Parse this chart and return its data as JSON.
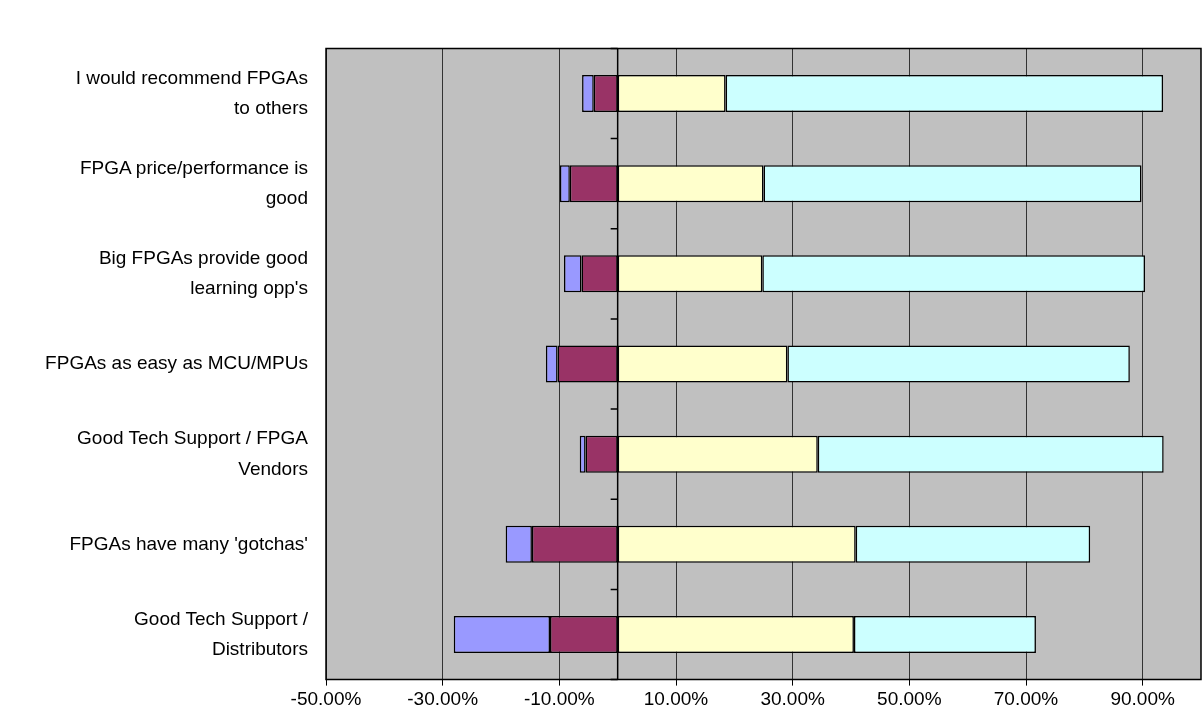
{
  "chart_data": {
    "type": "bar",
    "orientation": "horizontal",
    "stacked": true,
    "grid": "x",
    "legend": false,
    "categories": [
      "I would recommend FPGAs to others",
      "FPGA price/performance is good",
      "Big FPGAs provide good learning opp's",
      "FPGAs as easy as MCU/MPUs",
      "Good Tech Support / FPGA Vendors",
      "FPGAs have many 'gotchas'",
      "Good Tech Support / Distributors"
    ],
    "series": [
      {
        "color": "#993366",
        "values": [
          -4.1,
          -8.2,
          -6.2,
          -10.3,
          -5.5,
          -14.7,
          -11.6
        ]
      },
      {
        "color": "#9999ff",
        "values": [
          -2.0,
          -1.7,
          -3.0,
          -2.0,
          -1.0,
          -4.5,
          -16.5
        ]
      },
      {
        "color": "#ffffcc",
        "values": [
          18.5,
          25.0,
          24.8,
          29.1,
          34.3,
          40.8,
          40.5
        ]
      },
      {
        "color": "#ccffff",
        "values": [
          75.0,
          64.8,
          65.6,
          58.7,
          59.3,
          40.2,
          31.2
        ]
      }
    ],
    "xlim": [
      -50,
      100
    ],
    "xticks": [
      {
        "value": -50,
        "label": "-50.00%"
      },
      {
        "value": -30,
        "label": "-30.00%"
      },
      {
        "value": -10,
        "label": "-10.00%"
      },
      {
        "value": 10,
        "label": "10.00%"
      },
      {
        "value": 30,
        "label": "30.00%"
      },
      {
        "value": 50,
        "label": "50.00%"
      },
      {
        "value": 70,
        "label": "70.00%"
      },
      {
        "value": 90,
        "label": "90.00%"
      }
    ]
  }
}
